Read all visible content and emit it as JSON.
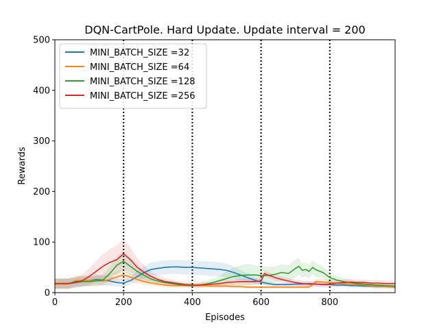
{
  "chart_data": {
    "type": "line",
    "title": "DQN-CartPole. Hard Update. Update interval = 200",
    "xlabel": "Episodes",
    "ylabel": "Rewards",
    "xlim": [
      0,
      990
    ],
    "ylim": [
      0,
      500
    ],
    "xticks": [
      "0",
      "200",
      "400",
      "600",
      "800"
    ],
    "xtick_values": [
      0,
      200,
      400,
      600,
      800
    ],
    "yticks": [
      "0",
      "100",
      "200",
      "300",
      "400",
      "500"
    ],
    "ytick_values": [
      0,
      100,
      200,
      300,
      400,
      500
    ],
    "vlines": [
      200,
      400,
      600,
      800
    ],
    "legend_position": "top-left",
    "series": [
      {
        "name": "MINI_BATCH_SIZE =32",
        "color": "#1f77b4",
        "x": [
          0,
          40,
          60,
          80,
          100,
          120,
          140,
          160,
          180,
          200,
          220,
          240,
          260,
          280,
          300,
          320,
          340,
          360,
          380,
          400,
          420,
          440,
          460,
          480,
          500,
          520,
          540,
          560,
          580,
          600,
          620,
          640,
          660,
          680,
          700,
          720,
          740,
          760,
          780,
          800,
          820,
          840,
          860,
          880,
          900,
          920,
          940,
          960,
          990
        ],
        "values": [
          18,
          18,
          20,
          22,
          24,
          26,
          25,
          23,
          20,
          19,
          24,
          32,
          40,
          46,
          48,
          50,
          51,
          51,
          50,
          50,
          49,
          48,
          47,
          46,
          44,
          40,
          35,
          30,
          25,
          21,
          18,
          16,
          16,
          16,
          17,
          17,
          18,
          17,
          16,
          16,
          15,
          15,
          14,
          14,
          13,
          13,
          12,
          12,
          11
        ],
        "band": [
          10,
          10,
          10,
          10,
          10,
          10,
          10,
          10,
          8,
          8,
          8,
          10,
          12,
          14,
          14,
          14,
          14,
          14,
          14,
          14,
          14,
          14,
          14,
          14,
          13,
          12,
          10,
          8,
          6,
          5,
          4,
          4,
          4,
          4,
          4,
          4,
          4,
          4,
          4,
          4,
          4,
          4,
          4,
          4,
          4,
          4,
          4,
          4,
          4
        ]
      },
      {
        "name": "MINI_BATCH_SIZE =64",
        "color": "#ff7f0e",
        "x": [
          0,
          40,
          60,
          80,
          100,
          120,
          140,
          160,
          180,
          200,
          220,
          240,
          260,
          280,
          300,
          320,
          340,
          360,
          380,
          400,
          420,
          440,
          460,
          480,
          500,
          520,
          540,
          560,
          580,
          600,
          620,
          640,
          660,
          680,
          700,
          720,
          740,
          760,
          780,
          800,
          820,
          840,
          860,
          880,
          900,
          920,
          940,
          960,
          990
        ],
        "values": [
          17,
          17,
          24,
          24,
          24,
          24,
          23,
          26,
          31,
          35,
          31,
          26,
          22,
          19,
          17,
          15,
          14,
          14,
          14,
          14,
          14,
          14,
          13,
          13,
          13,
          12,
          12,
          11,
          11,
          11,
          11,
          11,
          11,
          11,
          11,
          11,
          11,
          22,
          21,
          20,
          19,
          18,
          17,
          16,
          15,
          14,
          13,
          12,
          11
        ],
        "band": [
          10,
          10,
          10,
          10,
          10,
          10,
          10,
          10,
          10,
          10,
          9,
          8,
          7,
          6,
          5,
          4,
          4,
          4,
          4,
          4,
          4,
          4,
          4,
          4,
          3,
          3,
          3,
          3,
          3,
          3,
          3,
          3,
          3,
          3,
          3,
          3,
          3,
          6,
          6,
          6,
          6,
          5,
          5,
          5,
          4,
          4,
          4,
          3,
          3
        ]
      },
      {
        "name": "MINI_BATCH_SIZE =128",
        "color": "#2ca02c",
        "x": [
          0,
          40,
          60,
          80,
          100,
          120,
          140,
          160,
          180,
          200,
          220,
          240,
          260,
          280,
          300,
          320,
          340,
          360,
          380,
          400,
          420,
          440,
          460,
          480,
          500,
          520,
          540,
          560,
          580,
          600,
          620,
          640,
          660,
          680,
          700,
          710,
          720,
          730,
          740,
          750,
          760,
          780,
          800,
          820,
          840,
          860,
          880,
          900,
          920,
          940,
          960,
          990
        ],
        "values": [
          18,
          18,
          22,
          22,
          22,
          23,
          25,
          38,
          54,
          62,
          52,
          42,
          34,
          27,
          23,
          20,
          18,
          16,
          15,
          14,
          15,
          17,
          20,
          24,
          28,
          32,
          34,
          35,
          35,
          34,
          34,
          36,
          40,
          38,
          48,
          52,
          44,
          46,
          42,
          50,
          45,
          40,
          30,
          25,
          22,
          20,
          18,
          17,
          16,
          15,
          14,
          13
        ],
        "band": [
          10,
          10,
          10,
          10,
          10,
          10,
          10,
          14,
          18,
          20,
          18,
          14,
          10,
          8,
          6,
          5,
          5,
          4,
          4,
          4,
          5,
          6,
          8,
          10,
          14,
          18,
          20,
          22,
          20,
          18,
          18,
          16,
          16,
          16,
          18,
          16,
          14,
          14,
          14,
          14,
          14,
          12,
          10,
          8,
          6,
          6,
          5,
          5,
          5,
          4,
          4,
          4
        ]
      },
      {
        "name": "MINI_BATCH_SIZE =256",
        "color": "#d62728",
        "x": [
          0,
          40,
          60,
          80,
          100,
          120,
          140,
          160,
          180,
          200,
          220,
          240,
          260,
          280,
          300,
          320,
          340,
          360,
          380,
          400,
          420,
          440,
          460,
          480,
          500,
          520,
          540,
          560,
          580,
          600,
          610,
          620,
          640,
          660,
          680,
          700,
          720,
          740,
          760,
          780,
          800,
          820,
          840,
          860,
          880,
          900,
          920,
          940,
          960,
          990
        ],
        "values": [
          18,
          18,
          20,
          24,
          32,
          42,
          52,
          60,
          65,
          77,
          65,
          50,
          40,
          32,
          26,
          22,
          20,
          18,
          16,
          15,
          15,
          16,
          17,
          18,
          20,
          21,
          22,
          22,
          22,
          23,
          38,
          35,
          30,
          26,
          23,
          20,
          18,
          17,
          17,
          16,
          17,
          19,
          20,
          21,
          20,
          20,
          19,
          19,
          18,
          18
        ],
        "band": [
          10,
          10,
          10,
          12,
          16,
          20,
          24,
          26,
          28,
          30,
          24,
          18,
          14,
          10,
          8,
          7,
          6,
          5,
          5,
          4,
          5,
          5,
          5,
          5,
          6,
          6,
          6,
          6,
          6,
          6,
          6,
          6,
          6,
          6,
          6,
          6,
          6,
          6,
          6,
          6,
          6,
          6,
          6,
          6,
          6,
          6,
          6,
          6,
          6,
          6
        ]
      }
    ]
  }
}
